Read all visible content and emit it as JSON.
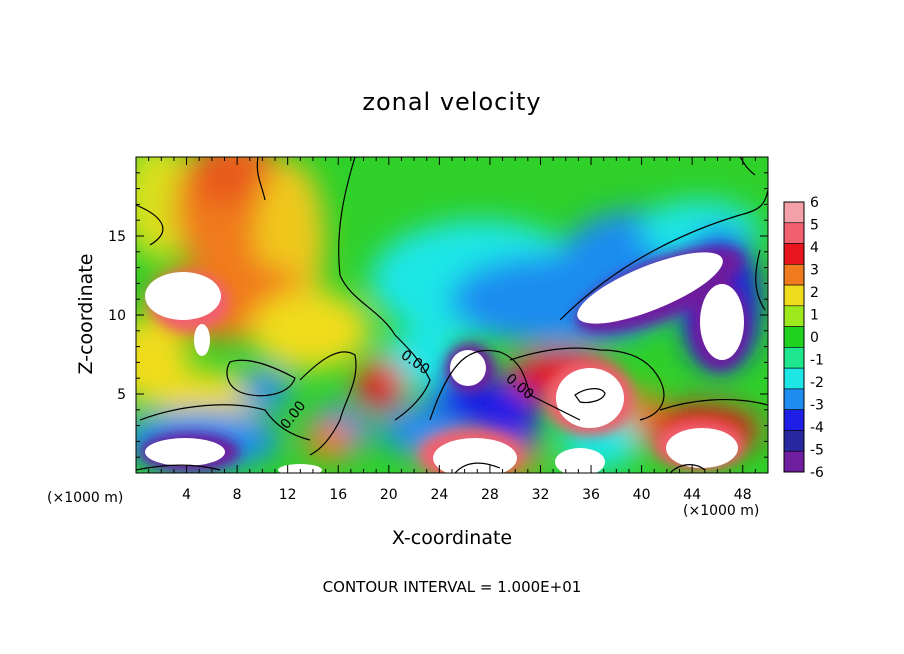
{
  "chart_data": {
    "type": "heatmap",
    "title": "zonal velocity",
    "xlabel": "X-coordinate",
    "ylabel": "Z-coordinate",
    "x_unit_left": "(×1000 m)",
    "x_unit_right": "(×1000 m)",
    "footer": "CONTOUR INTERVAL = 1.000E+01",
    "xlim": [
      0,
      50
    ],
    "ylim": [
      0,
      20
    ],
    "x_ticks": [
      4,
      8,
      12,
      16,
      20,
      24,
      28,
      32,
      36,
      40,
      44,
      48
    ],
    "y_ticks": [
      5,
      10,
      15
    ],
    "colorbar": {
      "levels": [
        6,
        5,
        4,
        3,
        2,
        1,
        0,
        -1,
        -2,
        -3,
        -4,
        -5,
        -6
      ],
      "colors": [
        "#f4a0a8",
        "#f0606e",
        "#e8141e",
        "#f07a1e",
        "#f0dc1e",
        "#9ee81e",
        "#1ed21e",
        "#1ee68c",
        "#1ee6e6",
        "#1e8cf0",
        "#1e1ee6",
        "#2828a0",
        "#6e1e9e"
      ]
    },
    "contour_label": "0.00",
    "grid": false
  }
}
